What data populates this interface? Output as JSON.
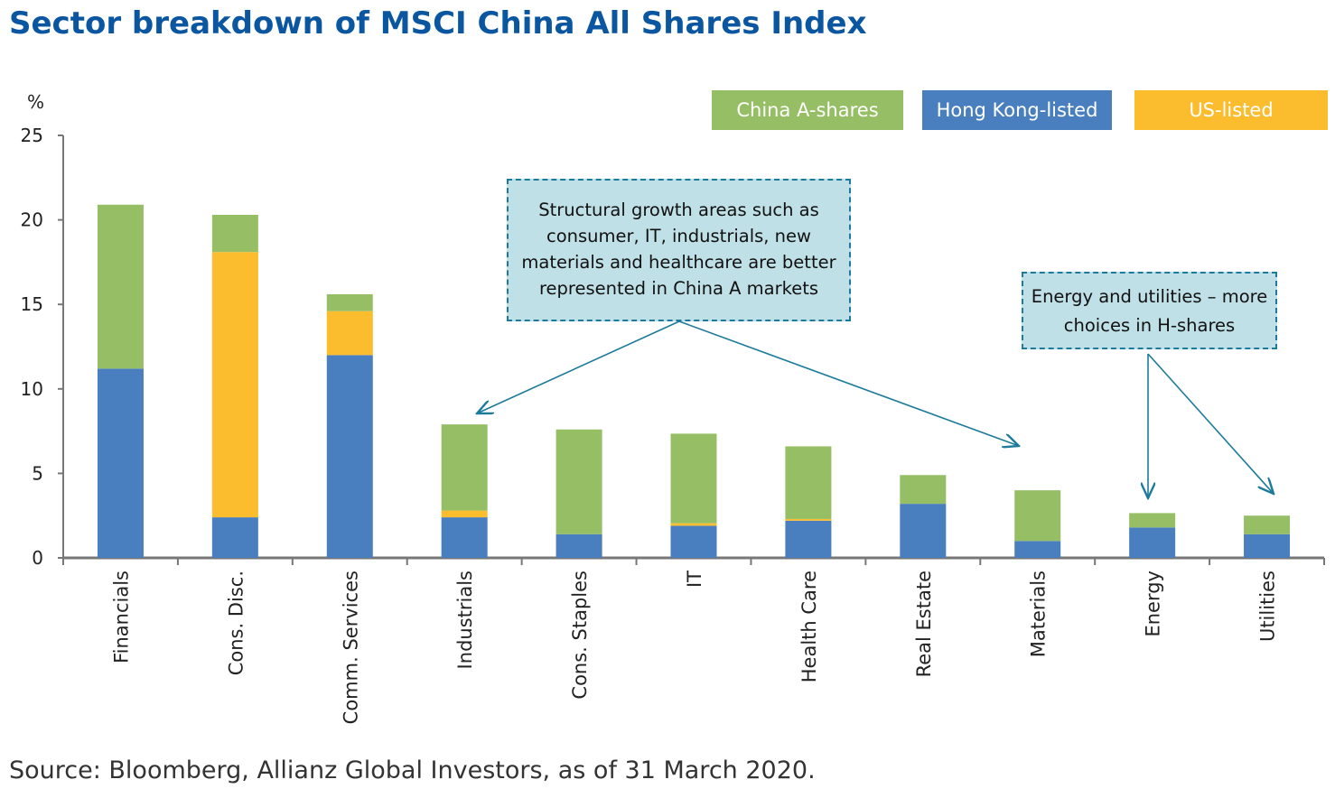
{
  "title": "Sector breakdown of MSCI China All Shares Index",
  "source": "Source: Bloomberg, Allianz Global Investors, as of 31 March 2020.",
  "notes": {
    "structural": "Structural growth areas such as consumer, IT, industrials, new materials and healthcare are better represented in China A markets",
    "energy": "Energy and utilities – more choices in H-shares"
  },
  "chart_data": {
    "type": "bar",
    "stacked": true,
    "ylabel": "%",
    "ylim": [
      0,
      25
    ],
    "yticks": [
      0,
      5,
      10,
      15,
      20,
      25
    ],
    "grid": false,
    "legend_position": "top-right",
    "categories": [
      "Financials",
      "Cons. Disc.",
      "Comm. Services",
      "Industrials",
      "Cons. Staples",
      "IT",
      "Health Care",
      "Real Estate",
      "Materials",
      "Energy",
      "Utilities"
    ],
    "series": [
      {
        "name": "Hong Kong-listed",
        "color": "#4a7fbf",
        "values": [
          11.2,
          2.4,
          12.0,
          2.4,
          1.4,
          1.9,
          2.2,
          3.2,
          1.0,
          1.8,
          1.4
        ]
      },
      {
        "name": "US-listed",
        "color": "#fbbc2e",
        "values": [
          0,
          15.7,
          2.6,
          0.4,
          0,
          0.15,
          0.1,
          0,
          0,
          0,
          0
        ]
      },
      {
        "name": "China A-shares",
        "color": "#96bf65",
        "values": [
          9.7,
          2.2,
          1.0,
          5.1,
          6.2,
          5.3,
          4.3,
          1.7,
          3.0,
          0.85,
          1.1
        ]
      }
    ],
    "legend_order": [
      "China A-shares",
      "Hong Kong-listed",
      "US-listed"
    ]
  }
}
